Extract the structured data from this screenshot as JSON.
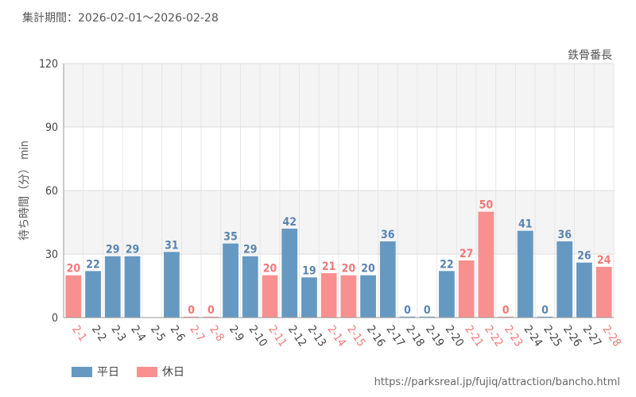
{
  "header": {
    "period": "集計期間：2026-02-01～2026-02-28"
  },
  "footer": {
    "url": "https://parksreal.jp/fujiq/attraction/bancho.html"
  },
  "colors": {
    "weekday": "#6699c2",
    "holiday": "#f99090",
    "weekday_label": "#5a84b0",
    "holiday_label": "#f07878"
  },
  "legend": {
    "weekday": "平日",
    "holiday": "休日"
  },
  "chart_data": {
    "type": "bar",
    "title": "鉄骨番長",
    "xlabel": "",
    "ylabel": "待ち時間（分） min",
    "ylim": [
      0,
      120
    ],
    "yticks": [
      "0",
      "30",
      "60",
      "90",
      "120"
    ],
    "categories": [
      "2-1",
      "2-2",
      "2-3",
      "2-4",
      "2-5",
      "2-6",
      "2-7",
      "2-8",
      "2-9",
      "2-10",
      "2-11",
      "2-12",
      "2-13",
      "2-14",
      "2-15",
      "2-16",
      "2-17",
      "2-18",
      "2-19",
      "2-20",
      "2-21",
      "2-22",
      "2-23",
      "2-24",
      "2-25",
      "2-26",
      "2-27",
      "2-28"
    ],
    "values": [
      20,
      22,
      29,
      29,
      null,
      31,
      0,
      0,
      35,
      29,
      20,
      42,
      19,
      21,
      20,
      20,
      36,
      0,
      0,
      22,
      27,
      50,
      0,
      41,
      0,
      36,
      26,
      24
    ],
    "day_type": [
      "holiday",
      "weekday",
      "weekday",
      "weekday",
      "weekday",
      "weekday",
      "holiday",
      "holiday",
      "weekday",
      "weekday",
      "holiday",
      "weekday",
      "weekday",
      "holiday",
      "holiday",
      "weekday",
      "weekday",
      "weekday",
      "weekday",
      "weekday",
      "holiday",
      "holiday",
      "holiday",
      "weekday",
      "weekday",
      "weekday",
      "weekday",
      "holiday"
    ]
  }
}
